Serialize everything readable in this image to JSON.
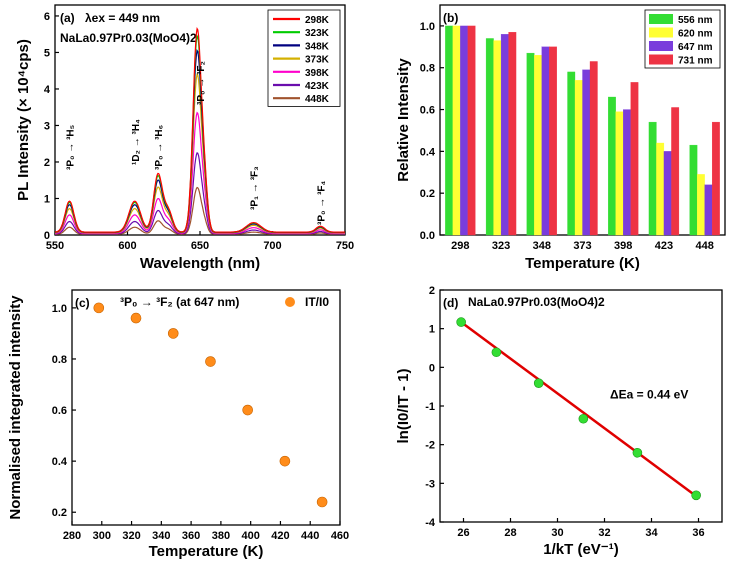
{
  "chart_data": [
    {
      "panel": "(a)",
      "type": "line",
      "title": "λex = 449 nm",
      "compound": "NaLa0.97Pr0.03(MoO4)2",
      "xlabel": "Wavelength (nm)",
      "ylabel": "PL Intensity (× 10⁴cps)",
      "xlim": [
        550,
        750
      ],
      "ylim": [
        0,
        6.3
      ],
      "xticks": [
        "550",
        "600",
        "650",
        "700",
        "750"
      ],
      "yticks": [
        "0",
        "1",
        "2",
        "3",
        "4",
        "5",
        "6"
      ],
      "peaks": [
        {
          "center": 560,
          "width": 3,
          "rel": 0.13
        },
        {
          "center": 605,
          "width": 4,
          "rel": 0.13
        },
        {
          "center": 621,
          "width": 3,
          "rel": 0.24
        },
        {
          "center": 628,
          "width": 3,
          "rel": 0.09
        },
        {
          "center": 648,
          "width": 2.8,
          "rel": 0.84
        },
        {
          "center": 653,
          "width": 2.2,
          "rel": 0.18
        },
        {
          "center": 687,
          "width": 5,
          "rel": 0.04
        },
        {
          "center": 733,
          "width": 3,
          "rel": 0.025
        }
      ],
      "series": [
        {
          "name": "298K",
          "color": "#ff0000",
          "peak": 5.65
        },
        {
          "name": "323K",
          "color": "#00cc00",
          "peak": 5.45
        },
        {
          "name": "348K",
          "color": "#000080",
          "peak": 5.05
        },
        {
          "name": "373K",
          "color": "#d4b000",
          "peak": 4.4
        },
        {
          "name": "398K",
          "color": "#ff00cc",
          "peak": 3.35
        },
        {
          "name": "423K",
          "color": "#6a0dad",
          "peak": 2.25
        },
        {
          "name": "448K",
          "color": "#a0522d",
          "peak": 1.3
        }
      ],
      "annotations": [
        {
          "text": "³P₀ → ³H₅",
          "x": 560
        },
        {
          "text": "¹D₂ → ³H₄",
          "x": 605
        },
        {
          "text": "³P₀ → ³H₆",
          "x": 621
        },
        {
          "text": "³P₀ → ³F₂",
          "x": 650
        },
        {
          "text": "³P₁ → ³F₃",
          "x": 687
        },
        {
          "text": "³P₀ → ³F₄",
          "x": 733
        }
      ]
    },
    {
      "panel": "(b)",
      "type": "bar",
      "xlabel": "Temperature (K)",
      "ylabel": "Relative Intensity",
      "ylim": [
        0,
        1.1
      ],
      "yticks": [
        "0.0",
        "0.2",
        "0.4",
        "0.6",
        "0.8",
        "1.0"
      ],
      "categories": [
        "298",
        "323",
        "348",
        "373",
        "398",
        "423",
        "448"
      ],
      "series": [
        {
          "name": "556 nm",
          "color": "#33dd33",
          "values": [
            1.0,
            0.94,
            0.87,
            0.78,
            0.66,
            0.54,
            0.43
          ]
        },
        {
          "name": "620 nm",
          "color": "#ffff33",
          "values": [
            1.0,
            0.93,
            0.86,
            0.74,
            0.59,
            0.44,
            0.29
          ]
        },
        {
          "name": "647 nm",
          "color": "#7a3ddc",
          "values": [
            1.0,
            0.96,
            0.9,
            0.79,
            0.6,
            0.4,
            0.24
          ]
        },
        {
          "name": "731 nm",
          "color": "#ee3344",
          "values": [
            1.0,
            0.97,
            0.9,
            0.83,
            0.73,
            0.61,
            0.54
          ]
        }
      ]
    },
    {
      "panel": "(c)",
      "type": "scatter",
      "title": "³P₀ → ³F₂ (at 647 nm)",
      "xlabel": "Temperature (K)",
      "ylabel": "Normalised integrated intensity",
      "xlim": [
        280,
        460
      ],
      "ylim": [
        0.15,
        1.07
      ],
      "xticks": [
        "280",
        "300",
        "320",
        "340",
        "360",
        "380",
        "400",
        "420",
        "440",
        "460"
      ],
      "yticks": [
        "0.2",
        "0.4",
        "0.6",
        "0.8",
        "1.0"
      ],
      "legend": "IT/I0",
      "color": "#ff8c1a",
      "x": [
        298,
        323,
        348,
        373,
        398,
        423,
        448
      ],
      "y": [
        1.0,
        0.96,
        0.9,
        0.79,
        0.6,
        0.4,
        0.24
      ]
    },
    {
      "panel": "(d)",
      "type": "scatter",
      "title": "NaLa0.97Pr0.03(MoO4)2",
      "xlabel": "1/kT (eV⁻¹)",
      "ylabel": "ln(I0/IT - 1)",
      "xlim": [
        25,
        37
      ],
      "ylim": [
        -4,
        2
      ],
      "xticks": [
        "26",
        "28",
        "30",
        "32",
        "34",
        "36"
      ],
      "yticks": [
        "-4",
        "-3",
        "-2",
        "-1",
        "0",
        "1",
        "2"
      ],
      "annotation": "ΔEa = 0.44 eV",
      "color": "#33dd33",
      "fit_color": "#e00000",
      "x": [
        25.9,
        27.4,
        29.2,
        31.1,
        33.4,
        35.9
      ],
      "y": [
        1.17,
        0.39,
        -0.41,
        -1.33,
        -2.21,
        -3.31
      ],
      "fit": {
        "x": [
          25.9,
          35.9
        ],
        "y": [
          1.17,
          -3.33
        ]
      }
    }
  ]
}
